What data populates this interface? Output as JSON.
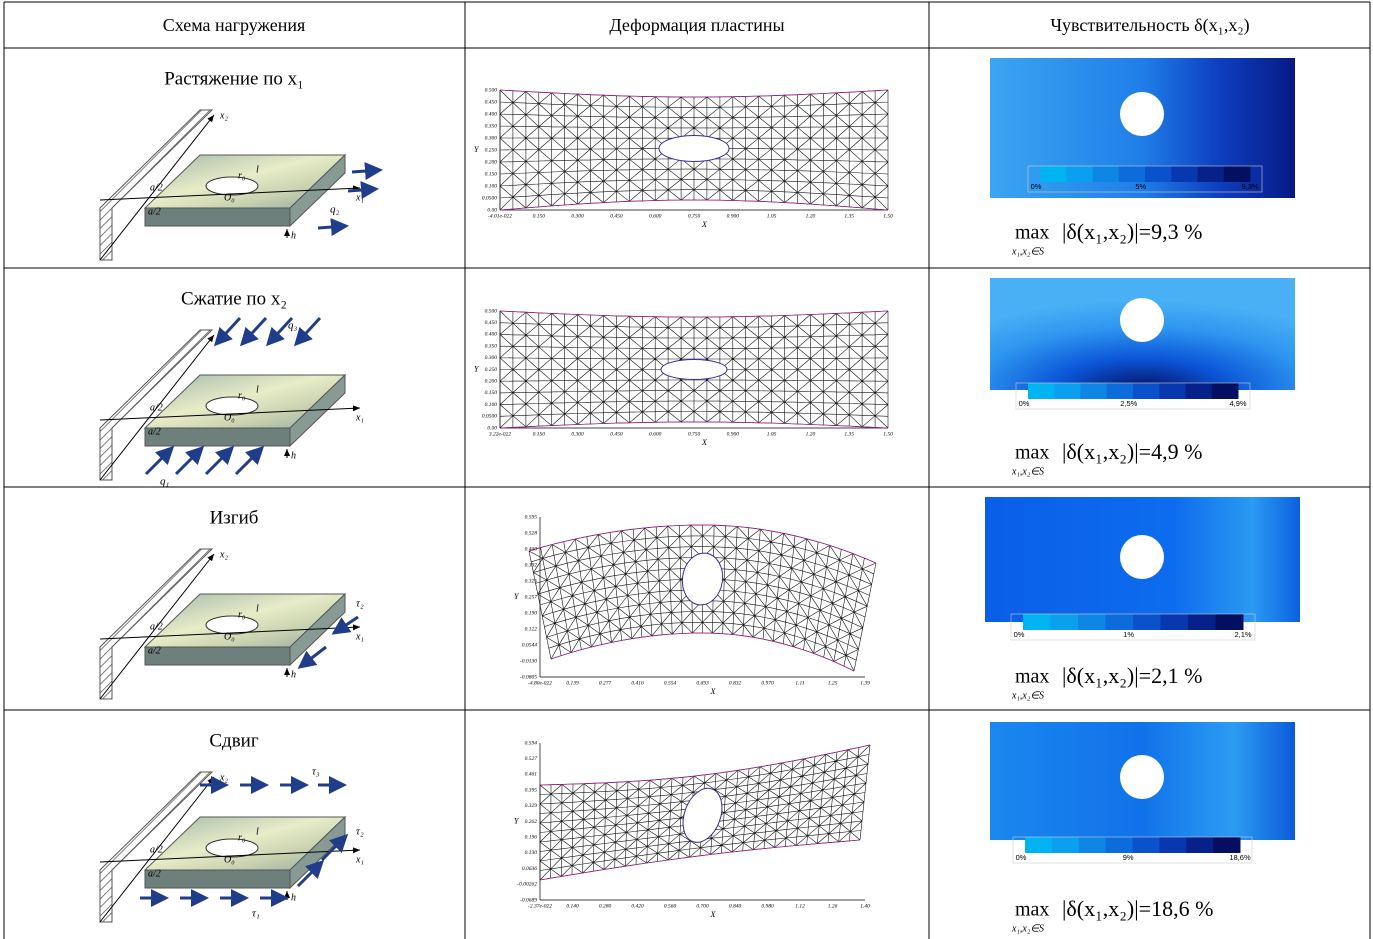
{
  "header": [
    "Схема нагружения",
    "Деформация пластины",
    "Чувствительность δ(x₁,x₂)"
  ],
  "rows": [
    {
      "load": "Растяжение по x₁",
      "diagram": {
        "x2": "x₂",
        "x1": "x₁",
        "l": "l",
        "a_top": "a/2",
        "a_bottom": "a/2",
        "r0": "r₀",
        "O0": "O₀",
        "h": "h",
        "loads": [
          "q₂"
        ]
      },
      "mesh": {
        "y_label": "Y",
        "x_label": "X",
        "yticks": [
          "0.500",
          "0.450",
          "0.400",
          "0.350",
          "0.300",
          "0.250",
          "0.200",
          "0.150",
          "0.100",
          "0.0500",
          "0.00"
        ],
        "xticks": [
          "-4.01e-022",
          "0.150",
          "0.300",
          "0.450",
          "0.600",
          "0.750",
          "0.900",
          "1.05",
          "1.20",
          "1.35",
          "1.50"
        ]
      },
      "colorbar": [
        "0%",
        "5%",
        "9,3%"
      ],
      "max": {
        "op": "max",
        "sub": "x₁,x₂∈S",
        "expr": "|δ(x₁,x₂)|=9,3 %"
      }
    },
    {
      "load": "Сжатие по x₂",
      "diagram": {
        "x2": "x₂",
        "x1": "x₁",
        "l": "l",
        "a_top": "a/2",
        "a_bottom": "a/2",
        "r0": "r₀",
        "O0": "O₀",
        "h": "h",
        "loads": [
          "q₃",
          "q₁"
        ]
      },
      "mesh": {
        "y_label": "Y",
        "x_label": "X",
        "yticks": [
          "0.500",
          "0.450",
          "0.400",
          "0.350",
          "0.300",
          "0.250",
          "0.200",
          "0.150",
          "0.100",
          "0.0500",
          "0.00"
        ],
        "xticks": [
          "3.22e-022",
          "0.150",
          "0.300",
          "0.450",
          "0.600",
          "0.750",
          "0.900",
          "1.05",
          "1.20",
          "1.35",
          "1.50"
        ]
      },
      "colorbar": [
        "0%",
        "2,5%",
        "4,9%"
      ],
      "max": {
        "op": "max",
        "sub": "x₁,x₂∈S",
        "expr": "|δ(x₁,x₂)|=4,9 %"
      }
    },
    {
      "load": "Изгиб",
      "diagram": {
        "x2": "x₂",
        "x1": "x₁",
        "l": "l",
        "a_top": "a/2",
        "a_bottom": "a/2",
        "r0": "r₀",
        "O0": "O₀",
        "h": "h",
        "loads": [
          "τ₂"
        ]
      },
      "mesh": {
        "y_label": "Y",
        "x_label": "X",
        "yticks": [
          "0.595",
          "0.528",
          "0.460",
          "0.392",
          "0.325",
          "0.257",
          "0.190",
          "0.122",
          "0.0544",
          "-0.0130",
          "-0.0805"
        ],
        "xticks": [
          "-4.80e-022",
          "0.139",
          "0.277",
          "0.416",
          "0.554",
          "0.693",
          "0.832",
          "0.970",
          "1.11",
          "1.25",
          "1.39"
        ]
      },
      "colorbar": [
        "0%",
        "1%",
        "2,1%"
      ],
      "max": {
        "op": "max",
        "sub": "x₁,x₂∈S",
        "expr": "|δ(x₁,x₂)|=2,1 %"
      }
    },
    {
      "load": "Сдвиг",
      "diagram": {
        "x2": "x₂",
        "x1": "x₁",
        "l": "l",
        "a_top": "a/2",
        "a_bottom": "a/2",
        "r0": "r₀",
        "O0": "O₀",
        "h": "h",
        "loads": [
          "τ₃",
          "τ₂",
          "τ₁"
        ]
      },
      "mesh": {
        "y_label": "Y",
        "x_label": "X",
        "yticks": [
          "0.594",
          "0.527",
          "0.461",
          "0.395",
          "0.329",
          "0.262",
          "0.196",
          "0.130",
          "0.0636",
          "-0.00262",
          "-0.0689"
        ],
        "xticks": [
          "-2.37e-022",
          "0.140",
          "0.280",
          "0.420",
          "0.560",
          "0.700",
          "0.840",
          "0.980",
          "1.12",
          "1.26",
          "1.40"
        ]
      },
      "colorbar": [
        "0%",
        "9%",
        "18,6%"
      ],
      "max": {
        "op": "max",
        "sub": "x₁,x₂∈S",
        "expr": "|δ(x₁,x₂)|=18,6 %"
      }
    }
  ]
}
